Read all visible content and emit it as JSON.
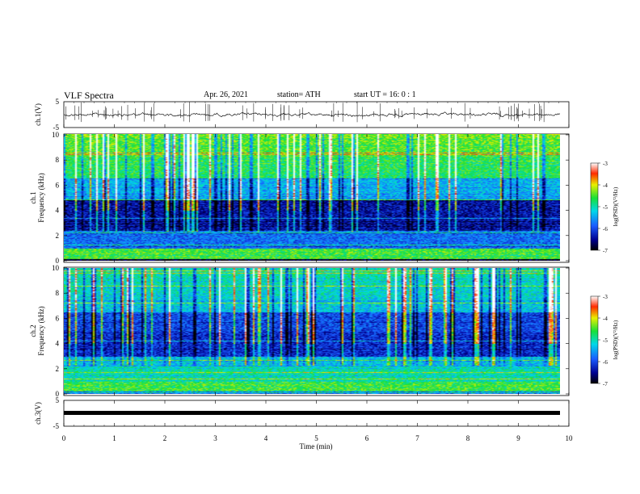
{
  "header": {
    "title": "VLF  Spectra",
    "date": "Apr. 26, 2021",
    "station": "station= ATH",
    "start": "start  UT  =    16: 0  : 1"
  },
  "chart_data": [
    {
      "type": "line",
      "panel": "ch1-waveform",
      "ylabel": "ch.1(V)",
      "yticks": [
        "5",
        "-5"
      ],
      "ylim": [
        -5,
        5
      ],
      "xlim": [
        0,
        10
      ],
      "color": "#000000"
    },
    {
      "type": "heatmap",
      "panel": "ch1-spectrogram",
      "ylabel_top": "ch.1",
      "ylabel": "Frequency  (kHz)",
      "yticks": [
        "0",
        "2",
        "4",
        "6",
        "8",
        "10"
      ],
      "ylim": [
        0,
        10
      ],
      "xlim": [
        0,
        10
      ],
      "colorbar": {
        "label": "log(PSD)(V²/Hz)",
        "ticks": [
          "-3",
          "-4",
          "-5",
          "-6",
          "-7"
        ],
        "range": [
          -7,
          -3
        ]
      }
    },
    {
      "type": "heatmap",
      "panel": "ch2-spectrogram",
      "ylabel_top": "ch.2",
      "ylabel": "Frequency  (kHz)",
      "yticks": [
        "0",
        "2",
        "4",
        "6",
        "8",
        "10"
      ],
      "ylim": [
        0,
        10
      ],
      "xlim": [
        0,
        10
      ],
      "colorbar": {
        "label": "log(PSD)(V²/Hz)",
        "ticks": [
          "-3",
          "-4",
          "-5",
          "-6",
          "-7"
        ],
        "range": [
          -7,
          -3
        ]
      }
    },
    {
      "type": "line",
      "panel": "ch3-waveform",
      "ylabel": "ch.3(V)",
      "yticks": [
        "5",
        "-5"
      ],
      "ylim": [
        -5,
        5
      ],
      "xlim": [
        0,
        10
      ],
      "xlabel": "Time  (min)",
      "xticks": [
        "0",
        "1",
        "2",
        "3",
        "4",
        "5",
        "6",
        "7",
        "8",
        "9",
        "10"
      ],
      "color": "#000000"
    }
  ]
}
